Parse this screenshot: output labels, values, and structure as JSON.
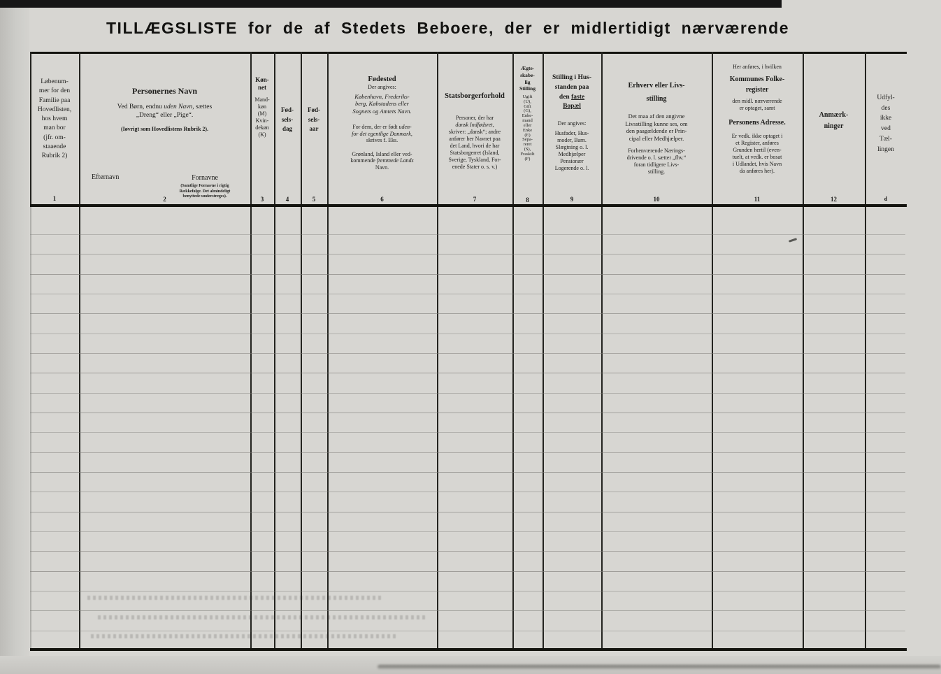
{
  "colors": {
    "paper": "#d7d6d2",
    "ink": "#1b1b19",
    "rule": "#14140f"
  },
  "page": {
    "title": "TILLÆGSLISTE for de af Stedets Beboere, der er midlertidigt nærværende"
  },
  "table": {
    "row_line_count": 21,
    "columns": [
      {
        "num": "1",
        "text": "Løbenum-\nmer for den\nFamilie paa\nHovedlisten,\nhos hvem\nman bor\n(jfr. om-\nstaaende\nRubrik 2)"
      },
      {
        "num": "2",
        "title": "Personernes Navn",
        "sub1_pre": "Ved Børn, endnu ",
        "sub1_it": "uden Navn",
        "sub1_post": ", sættes",
        "sub2": "„Dreng“ eller „Pige“.",
        "sub3": "(Iøvrigt som Hovedlistens Rubrik 2).",
        "efternavn": "Efternavn",
        "fornavne": "Fornavne",
        "fornavne_note": "(Samtlige Fornavne i rigtig\nRækkefølge. Det almindeligt\nbenyttede understreges)."
      },
      {
        "num": "3",
        "title": "Køn-\nnet",
        "sub": "Mand-\nkøn\n(M)\nKvin-\ndekøn\n(K)"
      },
      {
        "num": "4",
        "title": "Fød-\nsels-\ndag"
      },
      {
        "num": "5",
        "title": "Fød-\nsels-\naar"
      },
      {
        "num": "6",
        "title": "Fødested",
        "sub": "Der angives:",
        "p1": "København, Frederiks-\nberg, Købstadens eller\nSognets og Amtets Navn.",
        "p2_pre": "For dem, der er født ",
        "p2_it": "uden-\nfor det egentlige Danmark,",
        "p2_post": "\nskrives f. Eks.",
        "p3_pre": "Grønland, Island eller ved-\nkommende ",
        "p3_it": "fremmede Lands",
        "p3_post": "\nNavn."
      },
      {
        "num": "7",
        "title": "Statsborgerforhold",
        "p1_pre": "Personer, der har\n",
        "p1_it": "dansk Indfødsret,",
        "p1_post": "\nskriver: „dansk“; andre\nanfører her Navnet paa\ndet Land, hvori de har\nStatsborgerret (Island,\nSverige, Tyskland, For-\nenede Stater o. s. v.)"
      },
      {
        "num": "8",
        "title": "Ægte-\nskabe-\nlig\nStilling",
        "list": "Ugift\n(U),\nGift\n(G),\nEnke-\nmand\neller\nEnke\n(E)\nSepa-\nreret\n(S),\nFraskilt\n(F)"
      },
      {
        "num": "9",
        "t1": "Stilling i Hus-\nstanden paa",
        "t2_pre": "den ",
        "t2_u": "faste",
        "t3_u": "Bopæl",
        "sub": "Der angives:",
        "p1": "Husfader, Hus-\nmoder, Barn.\nSlægtning o. l.\nMedhjælper\nPensionær\nLogerende o. l."
      },
      {
        "num": "10",
        "title": "Erhverv eller Livs-\nstilling",
        "p1": "Det maa af den angivne\nLivsstilling kunne ses, om\nden paagældende er Prin-\ncipal eller Medhjælper.",
        "p2": "Forhenværende Nærings-\ndrivende o. l. sætter „fhv.“\nforan tidligere Livs-\nstilling."
      },
      {
        "num": "11",
        "pre": "Her anføres, i hvilken",
        "title1": "Kommunes Folke-\nregister",
        "mid": "den midl. nærværende\ner optaget, samt",
        "title2": "Personens Adresse.",
        "p1": "Er vedk. ikke optaget i\net Register, anføres\nGrunden hertil (even-\ntuelt, at vedk. er bosat\ni Udlandet, hvis Navn\nda anføres her)."
      },
      {
        "num": "12",
        "title": "Anmærk-\nninger"
      },
      {
        "num": "d",
        "text": "Udfyl-\ndes\nikke\nved\nTæl-\nlingen"
      }
    ]
  }
}
